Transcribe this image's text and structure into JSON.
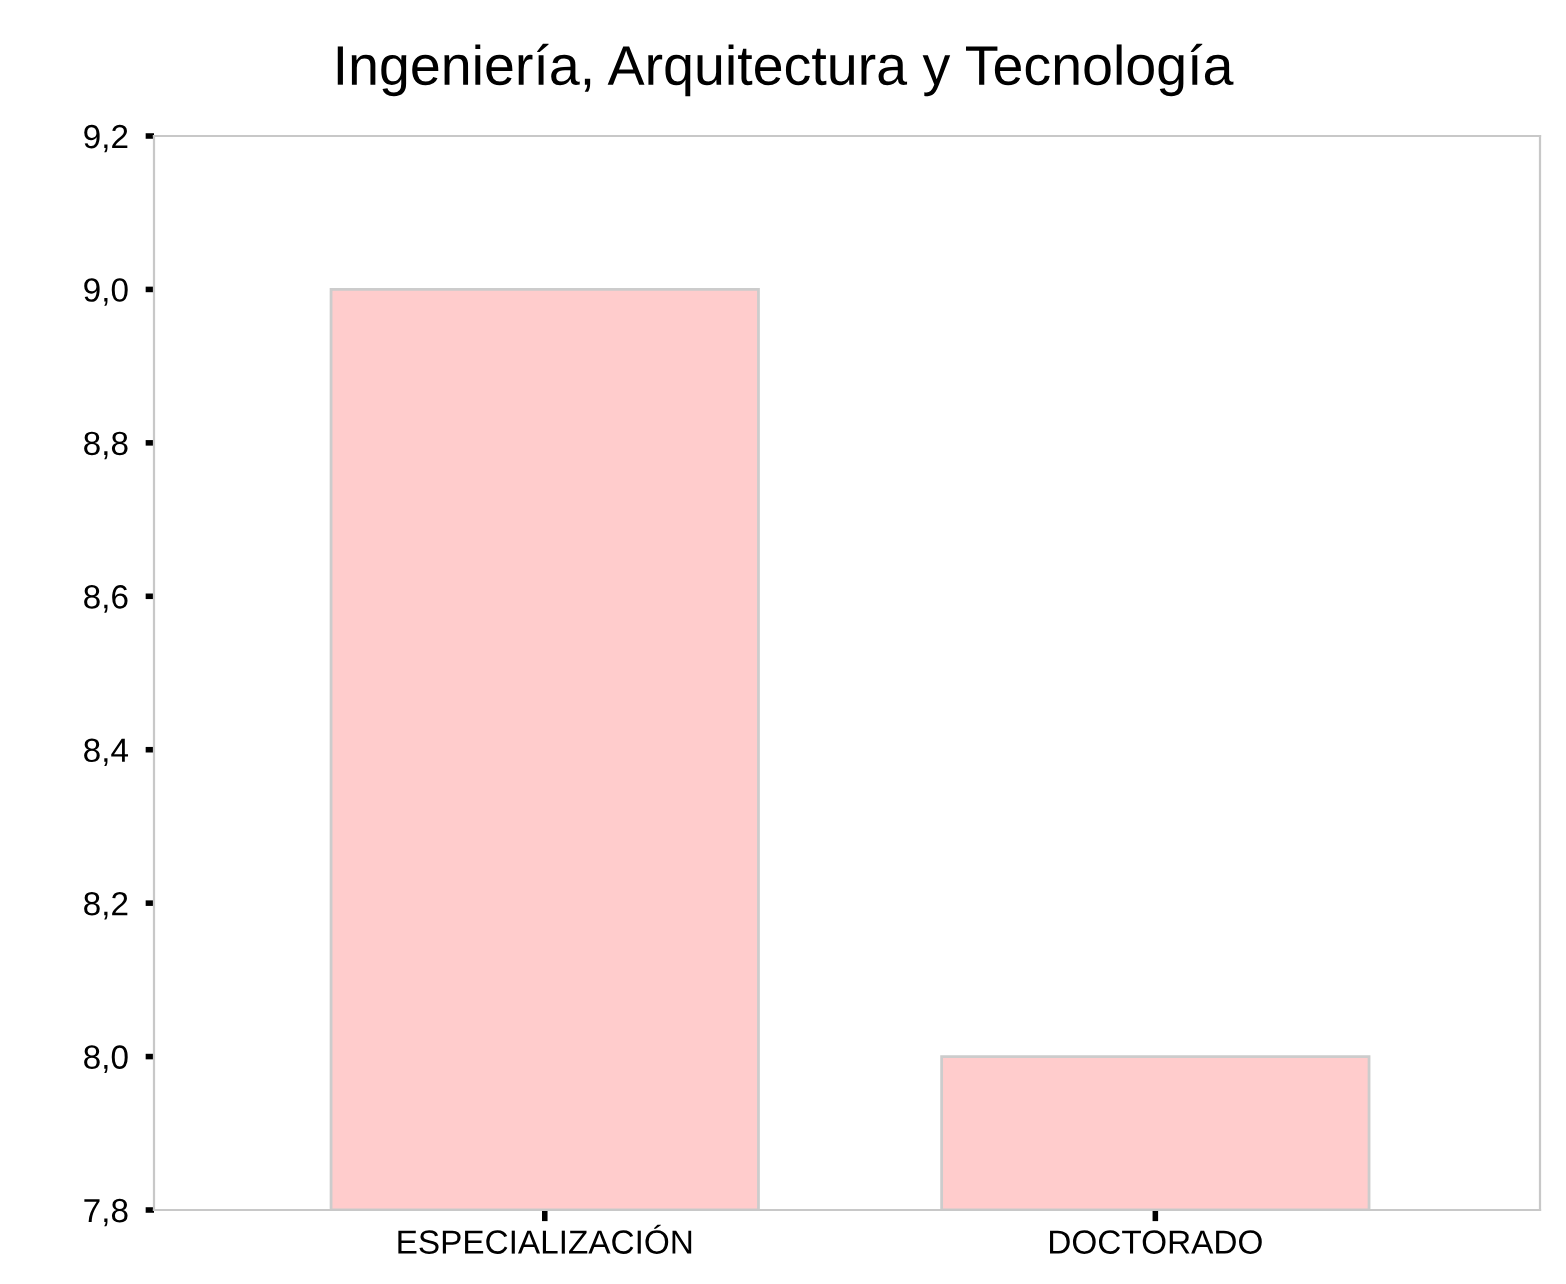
{
  "chart_data": {
    "type": "bar",
    "title": "Ingeniería, Arquitectura y Tecnología",
    "categories": [
      "ESPECIALIZACIÓN",
      "DOCTORADO"
    ],
    "series": [
      {
        "color": "#ffcccc",
        "values": [
          9.0,
          8.0
        ]
      }
    ],
    "ylim": [
      7.8,
      9.2
    ],
    "yticks": [
      {
        "value": 7.8,
        "label": "7,8"
      },
      {
        "value": 8.0,
        "label": "8,0"
      },
      {
        "value": 8.2,
        "label": "8,2"
      },
      {
        "value": 8.4,
        "label": "8,4"
      },
      {
        "value": 8.6,
        "label": "8,6"
      },
      {
        "value": 8.8,
        "label": "8,8"
      },
      {
        "value": 9.0,
        "label": "9,0"
      },
      {
        "value": 9.2,
        "label": "9,2"
      }
    ],
    "grid": false,
    "legend": false
  }
}
